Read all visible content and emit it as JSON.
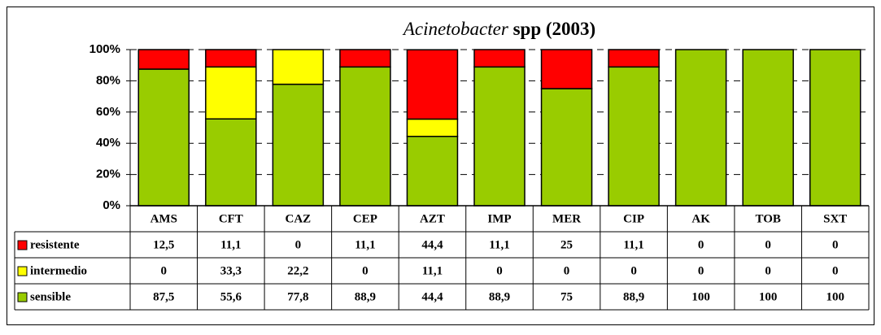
{
  "chart_data": {
    "type": "stacked_bar_100",
    "title": {
      "italic": "Acinetobacter",
      "rest": "spp (2003)"
    },
    "categories": [
      "AMS",
      "CFT",
      "CAZ",
      "CEP",
      "AZT",
      "IMP",
      "MER",
      "CIP",
      "AK",
      "TOB",
      "SXT"
    ],
    "series": [
      {
        "name": "resistente",
        "color": "#ff0000",
        "values": [
          12.5,
          11.1,
          0,
          11.1,
          44.4,
          11.1,
          25,
          11.1,
          0,
          0,
          0
        ],
        "value_labels": [
          "12,5",
          "11,1",
          "0",
          "11,1",
          "44,4",
          "11,1",
          "25",
          "11,1",
          "0",
          "0",
          "0"
        ]
      },
      {
        "name": "intermedio",
        "color": "#ffff00",
        "values": [
          0,
          33.3,
          22.2,
          0,
          11.1,
          0,
          0,
          0,
          0,
          0,
          0
        ],
        "value_labels": [
          "0",
          "33,3",
          "22,2",
          "0",
          "11,1",
          "0",
          "0",
          "0",
          "0",
          "0",
          "0"
        ]
      },
      {
        "name": "sensible",
        "color": "#99cc00",
        "values": [
          87.5,
          55.6,
          77.8,
          88.9,
          44.4,
          88.9,
          75,
          88.9,
          100,
          100,
          100
        ],
        "value_labels": [
          "87,5",
          "55,6",
          "77,8",
          "88,9",
          "44,4",
          "88,9",
          "75",
          "88,9",
          "100",
          "100",
          "100"
        ]
      }
    ],
    "ylim": [
      0,
      100
    ],
    "yticks": [
      {
        "value": 0,
        "label": "0%"
      },
      {
        "value": 20,
        "label": "20%"
      },
      {
        "value": 40,
        "label": "40%"
      },
      {
        "value": 60,
        "label": "60%"
      },
      {
        "value": 80,
        "label": "80%"
      },
      {
        "value": 100,
        "label": "100%"
      }
    ],
    "grid": true
  }
}
